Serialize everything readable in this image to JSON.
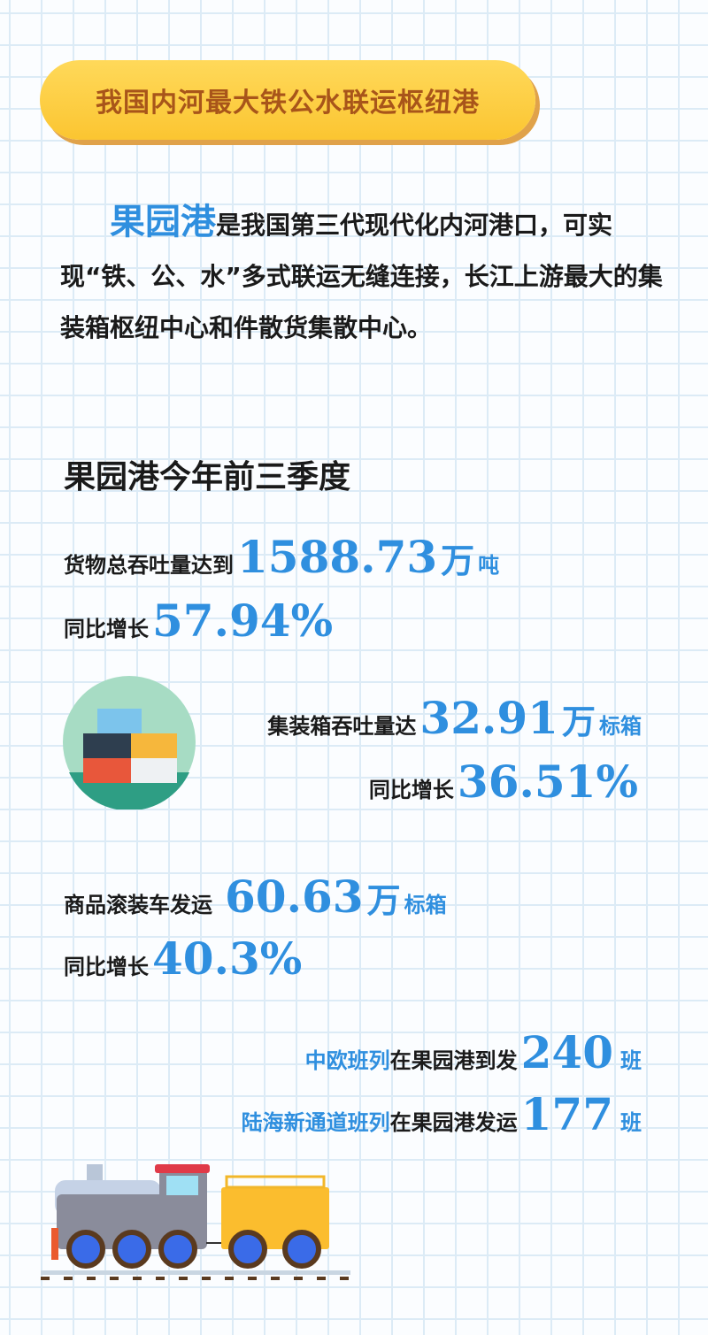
{
  "banner": {
    "title": "我国内河最大铁公水联运枢纽港"
  },
  "intro": {
    "highlight": "果园港",
    "text": "是我国第三代现代化内河港口，可实现“铁、公、水”多式联运无缝连接，长江上游最大的集装箱枢纽中心和件散货集散中心。"
  },
  "section": {
    "heading": "果园港今年前三季度"
  },
  "stats": {
    "cargo": {
      "label": "货物总吞吐量达到",
      "value": "1588.73",
      "unit_big": "万",
      "unit": "吨",
      "growth_label": "同比增长",
      "growth": "57.94%"
    },
    "container": {
      "label": "集装箱吞吐量达",
      "value": "32.91",
      "unit_big": "万",
      "unit": "标箱",
      "growth_label": "同比增长",
      "growth": "36.51%"
    },
    "vehicle": {
      "label": "商品滚装车发运",
      "value": "60.63",
      "unit_big": "万",
      "unit": "标箱",
      "growth_label": "同比增长",
      "growth": "40.3%"
    },
    "china_europe": {
      "name": "中欧班列",
      "label": "在果园港到发",
      "value": "240",
      "unit": "班"
    },
    "land_sea": {
      "name": "陆海新通道班列",
      "label": "在果园港发运",
      "value": "177",
      "unit": "班"
    }
  },
  "colors": {
    "accent": "#2f8fdf",
    "banner": "#fbc531",
    "banner_text": "#a8551a"
  },
  "icons": [
    "shipping-containers-icon",
    "train-icon"
  ]
}
